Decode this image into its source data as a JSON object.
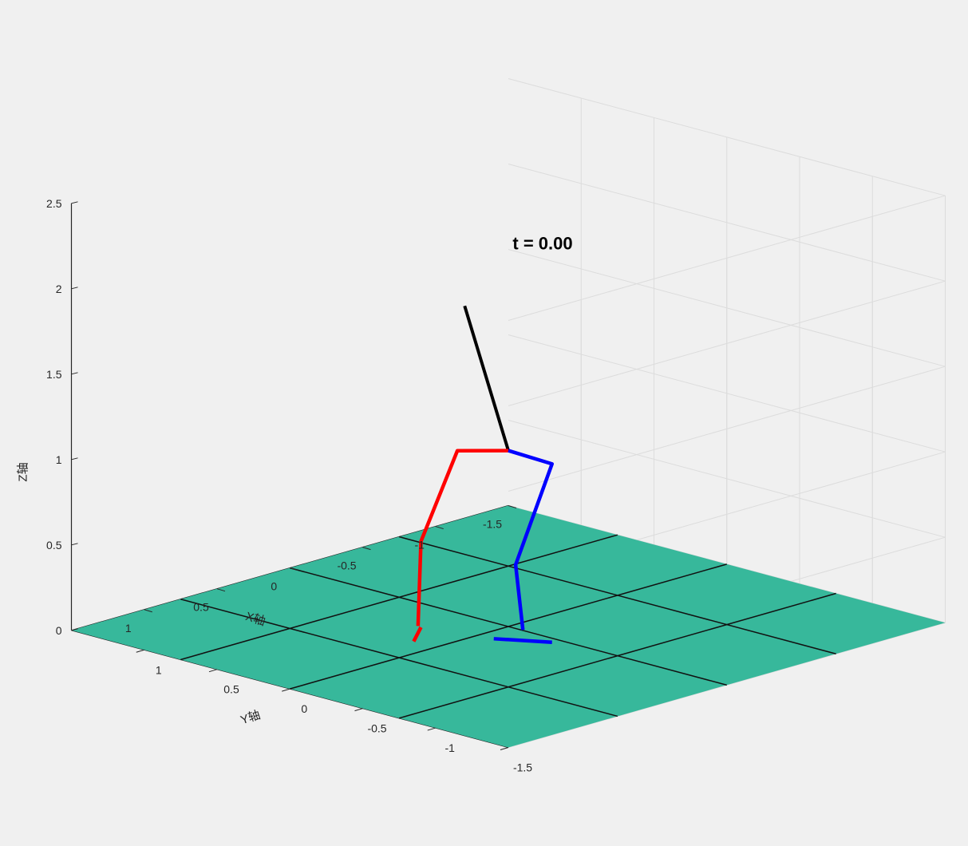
{
  "chart_data": {
    "type": "3d-line",
    "title": "",
    "xlabel": "X轴",
    "ylabel": "Y轴",
    "zlabel": "Z轴",
    "xlim": [
      -1.5,
      1.5
    ],
    "ylim": [
      -1.5,
      1.5
    ],
    "zlim": [
      0,
      2.5
    ],
    "x_ticks": [
      "1",
      "0.5",
      "0",
      "-0.5",
      "-1",
      "-1.5"
    ],
    "y_ticks": [
      "1",
      "0.5",
      "0",
      "-0.5",
      "-1",
      "-1.5"
    ],
    "z_ticks": [
      "0",
      "0.5",
      "1",
      "1.5",
      "2",
      "2.5"
    ],
    "grid": true,
    "annotation": "t = 0.00",
    "ground": {
      "color": "#37b89b",
      "x_range": [
        -1.5,
        1.5
      ],
      "y_range": [
        -1.5,
        1.5
      ],
      "z": 0
    },
    "series": [
      {
        "color": "#000000",
        "x": [
          0.3,
          0.0
        ],
        "y": [
          0.0,
          0.0
        ],
        "z": [
          1.95,
          1.03
        ]
      },
      {
        "color": "#ff0000",
        "x": [
          0.0,
          0.15,
          0.4,
          0.4
        ],
        "y": [
          0.0,
          0.2,
          0.2,
          0.22
        ],
        "z": [
          1.03,
          1.02,
          0.55,
          0.05
        ]
      },
      {
        "color": "#ff0000",
        "x": [
          0.5,
          0.3
        ],
        "y": [
          0.15,
          0.3
        ],
        "z": [
          0.0,
          0.0
        ]
      },
      {
        "color": "#0000ff",
        "x": [
          0.0,
          -0.15,
          0.1,
          0.1
        ],
        "y": [
          0.0,
          -0.15,
          -0.15,
          -0.2
        ],
        "z": [
          1.03,
          0.95,
          0.42,
          0.05
        ]
      },
      {
        "color": "#0000ff",
        "x": [
          0.2,
          0.05
        ],
        "y": [
          -0.1,
          -0.35
        ],
        "z": [
          0.0,
          0.0
        ]
      }
    ]
  }
}
